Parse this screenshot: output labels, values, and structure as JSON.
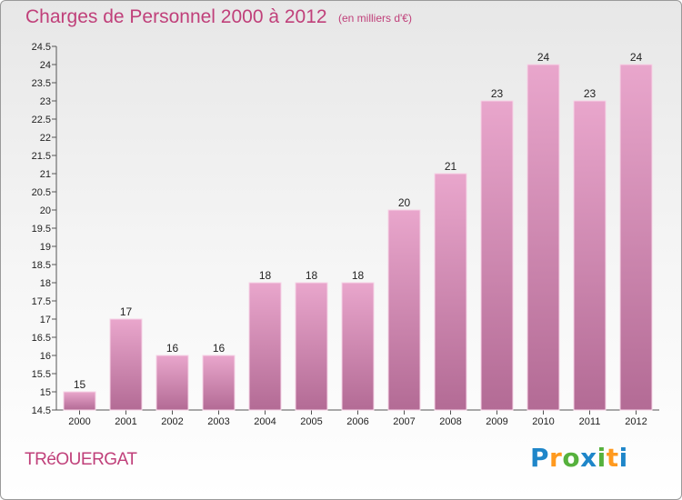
{
  "header": {
    "title": "Charges de Personnel 2000 à 2012",
    "subtitle": "(en milliers d'€)"
  },
  "footer": {
    "commune": "TRéOUERGAT",
    "logo_text": "Proxiti"
  },
  "colors": {
    "accent": "#c0407a",
    "bar_top": "#e9a6cc",
    "bar_bottom": "#b36b95",
    "logo_p": "#1f86c9",
    "logo_r": "#ff9a1f",
    "logo_o": "#56b13d",
    "logo_x": "#1f86c9",
    "logo_i": "#56b13d",
    "logo_t": "#ff9a1f",
    "logo_i2": "#1f86c9"
  },
  "chart_data": {
    "type": "bar",
    "title": "Charges de Personnel 2000 à 2012",
    "subtitle": "(en milliers d'€)",
    "xlabel": "",
    "ylabel": "",
    "categories": [
      "2000",
      "2001",
      "2002",
      "2003",
      "2004",
      "2005",
      "2006",
      "2007",
      "2008",
      "2009",
      "2010",
      "2011",
      "2012"
    ],
    "values": [
      15,
      17,
      16,
      16,
      18,
      18,
      18,
      20,
      21,
      23,
      24,
      23,
      24
    ],
    "ylim": [
      14.5,
      24.5
    ],
    "yticks": [
      "14.5",
      "15",
      "15.5",
      "16",
      "16.5",
      "17",
      "17.5",
      "18",
      "18.5",
      "19",
      "19.5",
      "20",
      "20.5",
      "21",
      "21.5",
      "22",
      "22.5",
      "23",
      "23.5",
      "24",
      "24.5"
    ],
    "grid": false,
    "legend": "none"
  }
}
